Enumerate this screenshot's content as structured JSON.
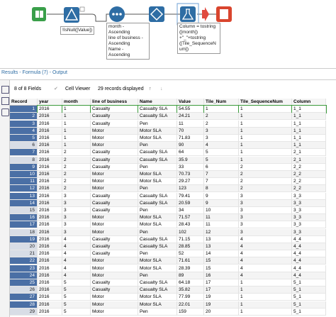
{
  "canvas": {
    "annotations": [
      {
        "lines": [
          "!IsNull([Value])"
        ]
      },
      {
        "lines": [
          "month -",
          "Ascending",
          "line of business -",
          "Ascending",
          "Name -",
          "Ascending"
        ]
      },
      {
        "lines": [
          "Column = tostring",
          "([month])",
          "+\"_\"+tostring",
          "([Tile_SequenceN",
          "um])"
        ]
      }
    ]
  },
  "results": {
    "title": "Results - Formula (7) - Output",
    "fields": "8 of 8 Fields",
    "viewer": "Cell Viewer",
    "records": "29 records displayed"
  },
  "table": {
    "columns": [
      "Record",
      "year",
      "month",
      "line of business",
      "Name",
      "Value",
      "Tile_Num",
      "Tile_SequenceNum",
      "Column"
    ],
    "rows": [
      [
        "1",
        "2016",
        "1",
        "Casualty",
        "Casualty SLA",
        "54.55",
        "1",
        "1",
        "1_1"
      ],
      [
        "2",
        "2016",
        "1",
        "Casualty",
        "Casualty SLA",
        "24.21",
        "2",
        "1",
        "1_1"
      ],
      [
        "3",
        "2016",
        "1",
        "Casualty",
        "Pen",
        "11",
        "2",
        "1",
        "1_1"
      ],
      [
        "4",
        "2016",
        "1",
        "Motor",
        "Motor SLA",
        "70",
        "3",
        "1",
        "1_1"
      ],
      [
        "5",
        "2016",
        "1",
        "Motor",
        "Motor SLA",
        "71.83",
        "3",
        "1",
        "1_1"
      ],
      [
        "6",
        "2016",
        "1",
        "Motor",
        "Pen",
        "90",
        "4",
        "1",
        "1_1"
      ],
      [
        "7",
        "2016",
        "2",
        "Casualty",
        "Casualty SLA",
        "64",
        "5",
        "1",
        "2_1"
      ],
      [
        "8",
        "2016",
        "2",
        "Casualty",
        "Casualty SLA",
        "35.9",
        "5",
        "1",
        "2_1"
      ],
      [
        "9",
        "2016",
        "2",
        "Casualty",
        "Pen",
        "33",
        "6",
        "2",
        "2_2"
      ],
      [
        "10",
        "2016",
        "2",
        "Motor",
        "Motor SLA",
        "70.73",
        "7",
        "2",
        "2_2"
      ],
      [
        "11",
        "2016",
        "2",
        "Motor",
        "Motor SLA",
        "29.27",
        "7",
        "2",
        "2_2"
      ],
      [
        "12",
        "2016",
        "2",
        "Motor",
        "Pen",
        "123",
        "8",
        "2",
        "2_2"
      ],
      [
        "13",
        "2016",
        "3",
        "Casualty",
        "Casualty SLA",
        "79.41",
        "9",
        "3",
        "3_3"
      ],
      [
        "14",
        "2016",
        "3",
        "Casualty",
        "Casualty SLA",
        "20.59",
        "9",
        "3",
        "3_3"
      ],
      [
        "15",
        "2016",
        "3",
        "Casualty",
        "Pen",
        "34",
        "10",
        "3",
        "3_3"
      ],
      [
        "16",
        "2016",
        "3",
        "Motor",
        "Motor SLA",
        "71.57",
        "11",
        "3",
        "3_3"
      ],
      [
        "17",
        "2016",
        "3",
        "Motor",
        "Motor SLA",
        "28.43",
        "11",
        "3",
        "3_3"
      ],
      [
        "18",
        "2016",
        "3",
        "Motor",
        "Pen",
        "102",
        "12",
        "3",
        "3_3"
      ],
      [
        "19",
        "2016",
        "4",
        "Casualty",
        "Casualty SLA",
        "71.15",
        "13",
        "4",
        "4_4"
      ],
      [
        "20",
        "2016",
        "4",
        "Casualty",
        "Casualty SLA",
        "28.85",
        "13",
        "4",
        "4_4"
      ],
      [
        "21",
        "2016",
        "4",
        "Casualty",
        "Pen",
        "52",
        "14",
        "4",
        "4_4"
      ],
      [
        "22",
        "2016",
        "4",
        "Motor",
        "Motor SLA",
        "71.61",
        "15",
        "4",
        "4_4"
      ],
      [
        "23",
        "2016",
        "4",
        "Motor",
        "Motor SLA",
        "28.39",
        "15",
        "4",
        "4_4"
      ],
      [
        "24",
        "2016",
        "4",
        "Motor",
        "Pen",
        "89",
        "16",
        "4",
        "4_4"
      ],
      [
        "25",
        "2016",
        "5",
        "Casualty",
        "Casualty SLA",
        "64.18",
        "17",
        "1",
        "5_1"
      ],
      [
        "26",
        "2016",
        "5",
        "Casualty",
        "Casualty SLA",
        "35.82",
        "17",
        "1",
        "5_1"
      ],
      [
        "27",
        "2016",
        "5",
        "Motor",
        "Motor SLA",
        "77.99",
        "19",
        "1",
        "5_1"
      ],
      [
        "28",
        "2016",
        "5",
        "Motor",
        "Motor SLA",
        "22.01",
        "19",
        "1",
        "5_1"
      ],
      [
        "29",
        "2016",
        "5",
        "Motor",
        "Pen",
        "159",
        "20",
        "1",
        "5_1"
      ]
    ]
  }
}
